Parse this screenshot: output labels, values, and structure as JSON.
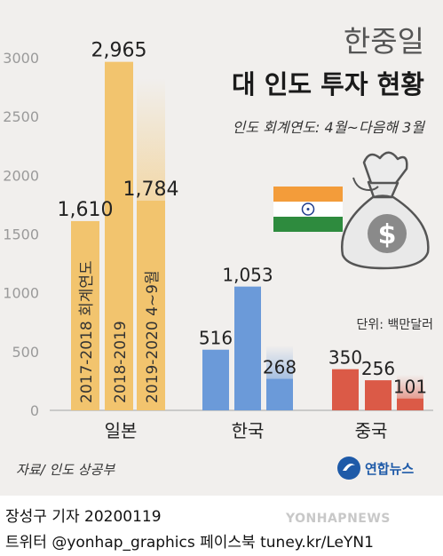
{
  "header": {
    "title_line1": "한중일",
    "title_line2": "대 인도 투자 현황",
    "subtitle": "인도 회계연도: 4월~다음해 3월"
  },
  "unit_label": "단위: 백만달러",
  "source": "자료/ 인도 상공부",
  "logo": {
    "text": "연합뉴스"
  },
  "credits": {
    "line1": "장성구 기자  20200119",
    "line2": "트위터 @yonhap_graphics  페이스북 tuney.kr/LeYN1"
  },
  "watermark": "YONHAPNEWS",
  "colors": {
    "japan": "#f2c46e",
    "korea": "#6b9ad9",
    "china": "#db5a47",
    "background": "#f1efed",
    "axis": "#bdbdbd"
  },
  "chart_data": {
    "type": "bar",
    "ylim": [
      0,
      3000
    ],
    "yticks": [
      0,
      500,
      1000,
      1500,
      2000,
      2500,
      3000
    ],
    "grid": false,
    "groups": [
      {
        "name": "일본",
        "color_key": "japan",
        "bars": [
          {
            "period": "2017-2018 회계연도",
            "value": 1610,
            "label": "1,610"
          },
          {
            "period": "2018-2019",
            "value": 2965,
            "label": "2,965"
          },
          {
            "period": "2019-2020 4~9월",
            "value": 1784,
            "label": "1,784",
            "partial": true
          }
        ]
      },
      {
        "name": "한국",
        "color_key": "korea",
        "bars": [
          {
            "value": 516,
            "label": "516"
          },
          {
            "value": 1053,
            "label": "1,053"
          },
          {
            "value": 268,
            "label": "268",
            "partial": true
          }
        ]
      },
      {
        "name": "중국",
        "color_key": "china",
        "bars": [
          {
            "value": 350,
            "label": "350"
          },
          {
            "value": 256,
            "label": "256"
          },
          {
            "value": 101,
            "label": "101",
            "partial": true
          }
        ]
      }
    ]
  }
}
